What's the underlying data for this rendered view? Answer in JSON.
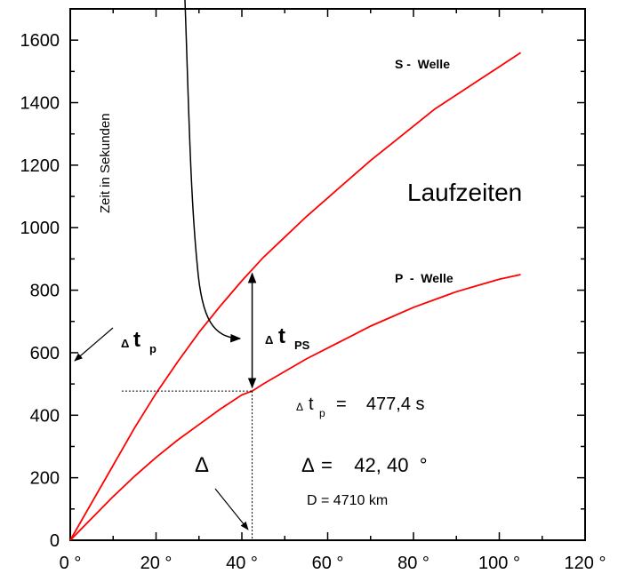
{
  "chart_data": {
    "type": "line",
    "title": "Laufzeiten",
    "ylabel": "Zeit  in  Sekunden",
    "xlabel": "",
    "xlim": [
      0,
      120
    ],
    "ylim": [
      0,
      1700
    ],
    "x_ticks": [
      0,
      20,
      40,
      60,
      80,
      100,
      120
    ],
    "x_tick_labels": [
      "0 °",
      "20 °",
      "40 °",
      "60 °",
      "80 °",
      "100 °",
      "120 °"
    ],
    "y_ticks": [
      0,
      200,
      400,
      600,
      800,
      1000,
      1200,
      1400,
      1600
    ],
    "y_tick_labels": [
      "0",
      "200",
      "400",
      "600",
      "800",
      "1000",
      "1200",
      "1400",
      "1600"
    ],
    "grid": false,
    "series": [
      {
        "name": "S -  Welle",
        "color": "#ff0000",
        "x": [
          0,
          5,
          10,
          15,
          20,
          25,
          30,
          35,
          40,
          45,
          50,
          55,
          60,
          65,
          70,
          75,
          80,
          85,
          90,
          95,
          100,
          105
        ],
        "y": [
          0,
          120,
          240,
          360,
          470,
          570,
          665,
          750,
          830,
          905,
          970,
          1035,
          1095,
          1155,
          1215,
          1270,
          1325,
          1380,
          1425,
          1470,
          1515,
          1560
        ]
      },
      {
        "name": "P  -  Welle",
        "color": "#ff0000",
        "x": [
          0,
          5,
          10,
          15,
          20,
          25,
          30,
          35,
          40,
          42.4,
          45,
          50,
          55,
          60,
          65,
          70,
          75,
          80,
          85,
          90,
          95,
          100,
          105
        ],
        "y": [
          0,
          70,
          140,
          205,
          265,
          320,
          370,
          420,
          465,
          477.4,
          500,
          540,
          580,
          615,
          650,
          685,
          715,
          745,
          770,
          795,
          815,
          835,
          850
        ]
      }
    ],
    "annotations": {
      "delta_tp_label": "t",
      "delta_tp_sub": "p",
      "delta_tps_label": "t",
      "delta_tps_sub": "PS",
      "delta_symbol": "Δ",
      "small_delta": "Δ",
      "tp_eq_text": "=    477,4 s",
      "delta_eq_text": "=    42, 40  °",
      "distance_text": "D = 4710 km",
      "tp_value": 477.4,
      "delta_value": 42.4,
      "s_at_delta": 865
    }
  }
}
